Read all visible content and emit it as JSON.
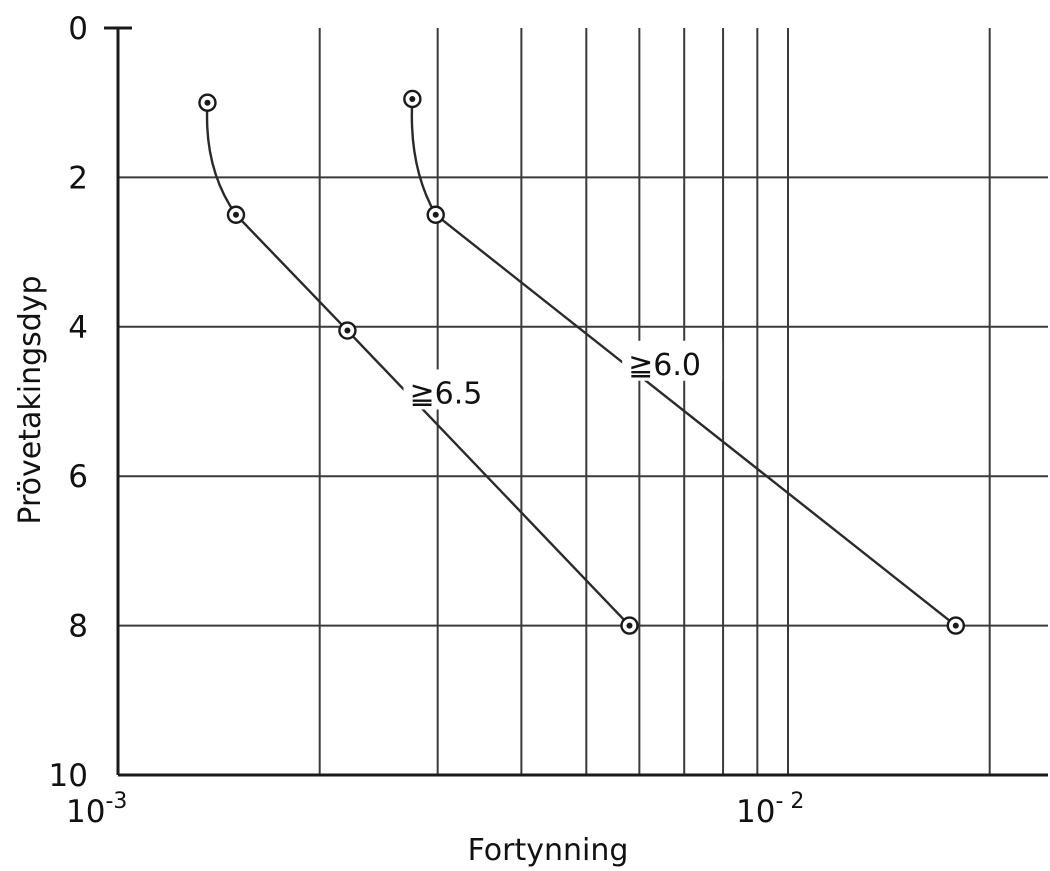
{
  "chart_data": {
    "type": "line",
    "xlabel": "Fortynning",
    "ylabel": "Prövetakingsdyp",
    "x_scale": "log",
    "xlim": [
      0.001,
      0.02
    ],
    "ylim": [
      0,
      10
    ],
    "y_inverted": true,
    "x_ticks": [
      {
        "value": 0.001,
        "base": "10",
        "exponent": "-3"
      },
      {
        "value": 0.01,
        "base": "10",
        "exponent": "- 2"
      }
    ],
    "y_ticks": [
      "0",
      "2",
      "4",
      "6",
      "8",
      "10"
    ],
    "grid": true,
    "series": [
      {
        "label": "≧6.5",
        "points": [
          {
            "x": 0.00136,
            "y": 1.0
          },
          {
            "x": 0.0015,
            "y": 2.5
          },
          {
            "x": 0.0022,
            "y": 4.05
          },
          {
            "x": 0.0058,
            "y": 8.0
          }
        ]
      },
      {
        "label": "≧6.0",
        "points": [
          {
            "x": 0.00275,
            "y": 0.95
          },
          {
            "x": 0.00298,
            "y": 2.5
          },
          {
            "x": 0.0178,
            "y": 8.0
          }
        ]
      }
    ]
  }
}
